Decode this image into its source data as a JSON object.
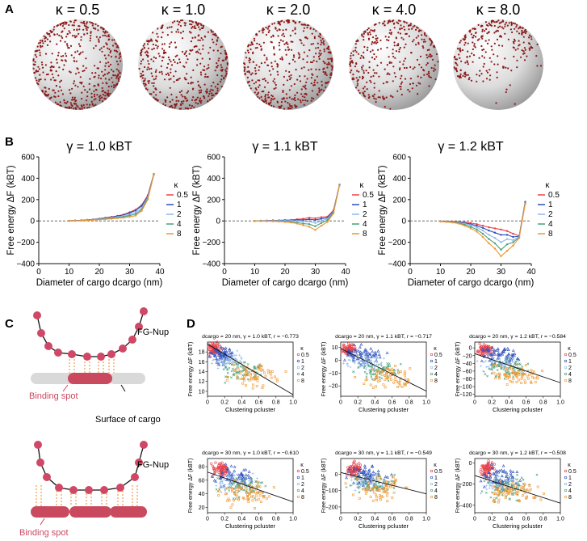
{
  "colors": {
    "sphere_dot": "#8b1a1a",
    "k0.5": "#e8424b",
    "k1": "#2b4fbf",
    "k2": "#8fb7e8",
    "k4": "#45a07a",
    "k8": "#f0962e",
    "node": "#d04866",
    "surface": "#d9d9d9",
    "bar": "#c94a5e",
    "spring": "#f0b070"
  },
  "panel_labels": {
    "A": "A",
    "B": "B",
    "C": "C",
    "D": "D"
  },
  "panelA": {
    "spheres": [
      {
        "label": "κ = 0.5",
        "kappa": 0.5,
        "coverage": 1.0
      },
      {
        "label": "κ = 1.0",
        "kappa": 1.0,
        "coverage": 0.95
      },
      {
        "label": "κ = 2.0",
        "kappa": 2.0,
        "coverage": 0.85
      },
      {
        "label": "κ = 4.0",
        "kappa": 4.0,
        "coverage": 0.6
      },
      {
        "label": "κ = 8.0",
        "kappa": 8.0,
        "coverage": 0.35
      }
    ]
  },
  "chart_data": [
    {
      "type": "line",
      "panel": "B1",
      "title": "γ = 1.0 kBT",
      "xlabel": "Diameter of cargo dcargo (nm)",
      "ylabel": "Free energy ΔF (kBT)",
      "xlim": [
        0,
        40
      ],
      "ylim": [
        -400,
        600
      ],
      "xticks": [
        "0",
        "10",
        "20",
        "30",
        "40"
      ],
      "yticks": [
        "600",
        "400",
        "200",
        "0",
        "−200",
        "−400"
      ],
      "x": [
        10,
        12,
        14,
        16,
        18,
        20,
        22,
        24,
        26,
        28,
        30,
        32,
        34,
        36,
        38
      ],
      "legend_title": "κ",
      "series": [
        {
          "name": "0.5",
          "values": [
            2,
            4,
            6,
            10,
            15,
            22,
            30,
            38,
            48,
            60,
            82,
            105,
            150,
            240,
            440
          ]
        },
        {
          "name": "1",
          "values": [
            1,
            3,
            5,
            9,
            14,
            20,
            28,
            35,
            45,
            55,
            75,
            98,
            140,
            230,
            438
          ]
        },
        {
          "name": "2",
          "values": [
            1,
            2,
            4,
            7,
            12,
            18,
            24,
            30,
            38,
            46,
            60,
            80,
            120,
            220,
            436
          ]
        },
        {
          "name": "4",
          "values": [
            0,
            2,
            3,
            6,
            10,
            15,
            20,
            25,
            32,
            38,
            50,
            65,
            105,
            210,
            434
          ]
        },
        {
          "name": "8",
          "values": [
            0,
            1,
            2,
            5,
            8,
            12,
            16,
            20,
            26,
            30,
            38,
            50,
            95,
            200,
            432
          ]
        }
      ]
    },
    {
      "type": "line",
      "panel": "B2",
      "title": "γ = 1.1 kBT",
      "xlabel": "Diameter of cargo dcargo (nm)",
      "ylabel": "Free energy ΔF (kBT)",
      "xlim": [
        0,
        40
      ],
      "ylim": [
        -400,
        600
      ],
      "xticks": [
        "0",
        "10",
        "20",
        "30",
        "40"
      ],
      "yticks": [
        "600",
        "400",
        "200",
        "0",
        "−200",
        "−400"
      ],
      "x": [
        10,
        12,
        14,
        16,
        18,
        20,
        22,
        24,
        26,
        28,
        30,
        32,
        34,
        36,
        38
      ],
      "legend_title": "κ",
      "series": [
        {
          "name": "0.5",
          "values": [
            0,
            2,
            3,
            5,
            6,
            8,
            10,
            15,
            20,
            30,
            25,
            35,
            40,
            100,
            340
          ]
        },
        {
          "name": "1",
          "values": [
            0,
            1,
            2,
            3,
            4,
            5,
            6,
            8,
            10,
            15,
            10,
            20,
            30,
            90,
            338
          ]
        },
        {
          "name": "2",
          "values": [
            0,
            0,
            0,
            1,
            2,
            2,
            2,
            0,
            -5,
            -5,
            -20,
            0,
            20,
            85,
            336
          ]
        },
        {
          "name": "4",
          "values": [
            0,
            -1,
            -2,
            -2,
            -3,
            -5,
            -8,
            -15,
            -25,
            -30,
            -50,
            -20,
            5,
            80,
            334
          ]
        },
        {
          "name": "8",
          "values": [
            0,
            -2,
            -3,
            -4,
            -6,
            -10,
            -15,
            -25,
            -40,
            -55,
            -85,
            -45,
            -10,
            70,
            332
          ]
        }
      ]
    },
    {
      "type": "line",
      "panel": "B3",
      "title": "γ = 1.2 kBT",
      "xlabel": "Diameter of cargo dcargo (nm)",
      "ylabel": "Free energy ΔF (kBT)",
      "xlim": [
        0,
        40
      ],
      "ylim": [
        -400,
        600
      ],
      "xticks": [
        "0",
        "10",
        "20",
        "30",
        "40"
      ],
      "yticks": [
        "600",
        "400",
        "200",
        "0",
        "−200",
        "−400"
      ],
      "x": [
        10,
        12,
        14,
        16,
        18,
        20,
        22,
        24,
        26,
        28,
        30,
        32,
        34,
        36,
        38
      ],
      "legend_title": "κ",
      "series": [
        {
          "name": "0.5",
          "values": [
            -2,
            -3,
            -5,
            -8,
            -12,
            -20,
            -30,
            -45,
            -60,
            -70,
            -80,
            -95,
            -120,
            -140,
            180
          ]
        },
        {
          "name": "1",
          "values": [
            -3,
            -5,
            -8,
            -12,
            -18,
            -30,
            -45,
            -65,
            -90,
            -110,
            -130,
            -130,
            -150,
            -145,
            175
          ]
        },
        {
          "name": "2",
          "values": [
            -4,
            -6,
            -10,
            -15,
            -25,
            -40,
            -60,
            -90,
            -130,
            -160,
            -200,
            -170,
            -180,
            -150,
            170
          ]
        },
        {
          "name": "4",
          "values": [
            -5,
            -8,
            -12,
            -20,
            -35,
            -55,
            -80,
            -120,
            -170,
            -210,
            -270,
            -220,
            -200,
            -155,
            165
          ]
        },
        {
          "name": "8",
          "values": [
            -6,
            -10,
            -15,
            -25,
            -45,
            -70,
            -100,
            -150,
            -210,
            -260,
            -330,
            -280,
            -230,
            -160,
            160
          ]
        }
      ]
    },
    {
      "type": "scatter",
      "panel": "D1",
      "title": "dcargo = 20 nm, γ = 1.0 kBT, r = −0.773",
      "xlabel": "Clustering pcluster",
      "ylabel": "Free energy ΔF (kBT)",
      "xlim": [
        0,
        1
      ],
      "ylim": [
        9,
        20
      ],
      "xticks": [
        "0",
        "0.2",
        "0.4",
        "0.6",
        "0.8",
        "1.0"
      ],
      "yticks": [
        "18",
        "16",
        "14",
        "12",
        "10"
      ],
      "ytick_values": [
        18,
        16,
        14,
        12,
        10
      ],
      "fit": {
        "x0": 0.0,
        "y0": 19.6,
        "x1": 1.0,
        "y1": 9.3
      },
      "legend_title": "κ",
      "legend": [
        "0.5",
        "1",
        "2",
        "4",
        "8"
      ],
      "clouds": [
        {
          "name": "0.5",
          "cx": 0.08,
          "sx": 0.06,
          "cy": 18.6,
          "sy": 0.9
        },
        {
          "name": "1",
          "cx": 0.15,
          "sx": 0.09,
          "cy": 17.5,
          "sy": 1.2
        },
        {
          "name": "2",
          "cx": 0.25,
          "sx": 0.12,
          "cy": 16.0,
          "sy": 1.4
        },
        {
          "name": "4",
          "cx": 0.4,
          "sx": 0.15,
          "cy": 14.5,
          "sy": 1.5
        },
        {
          "name": "8",
          "cx": 0.55,
          "sx": 0.18,
          "cy": 13.0,
          "sy": 1.6
        }
      ]
    },
    {
      "type": "scatter",
      "panel": "D2",
      "title": "dcargo = 20 nm, γ = 1.1 kBT, r = −0.717",
      "xlabel": "Clustering pcluster",
      "ylabel": "Free energy ΔF (kBT)",
      "xlim": [
        0,
        1
      ],
      "ylim": [
        -28,
        14
      ],
      "xticks": [
        "0",
        "0.2",
        "0.4",
        "0.6",
        "0.8",
        "1.0"
      ],
      "yticks": [
        "10",
        "0",
        "−10",
        "−20"
      ],
      "ytick_values": [
        10,
        0,
        -10,
        -20
      ],
      "fit": {
        "x0": 0.0,
        "y0": 9.0,
        "x1": 1.0,
        "y1": -24.0
      },
      "legend_title": "κ",
      "legend": [
        "0.5",
        "1",
        "2",
        "4",
        "8"
      ],
      "clouds": [
        {
          "name": "0.5",
          "cx": 0.1,
          "sx": 0.06,
          "cy": 8.0,
          "sy": 3.0
        },
        {
          "name": "1",
          "cx": 0.25,
          "sx": 0.15,
          "cy": 4.0,
          "sy": 4.5
        },
        {
          "name": "2",
          "cx": 0.3,
          "sx": 0.15,
          "cy": -2.0,
          "sy": 5.0
        },
        {
          "name": "4",
          "cx": 0.45,
          "sx": 0.18,
          "cy": -8.0,
          "sy": 5.0
        },
        {
          "name": "8",
          "cx": 0.55,
          "sx": 0.2,
          "cy": -13.0,
          "sy": 5.5
        }
      ]
    },
    {
      "type": "scatter",
      "panel": "D3",
      "title": "dcargo = 20 nm, γ = 1.2 kBT, r = −0.584",
      "xlabel": "Clustering pcluster",
      "ylabel": "Free energy ΔF (kBT)",
      "xlim": [
        0,
        1
      ],
      "ylim": [
        -125,
        15
      ],
      "xticks": [
        "0",
        "0.2",
        "0.4",
        "0.6",
        "0.8",
        "1.0"
      ],
      "yticks": [
        "0",
        "−20",
        "−40",
        "−60",
        "−80",
        "−100",
        "−120"
      ],
      "ytick_values": [
        0,
        -20,
        -40,
        -60,
        -80,
        -100,
        -120
      ],
      "fit": {
        "x0": 0.0,
        "y0": -15.0,
        "x1": 1.0,
        "y1": -90.0
      },
      "legend_title": "κ",
      "legend": [
        "0.5",
        "1",
        "2",
        "4",
        "8"
      ],
      "clouds": [
        {
          "name": "0.5",
          "cx": 0.12,
          "sx": 0.06,
          "cy": -5.0,
          "sy": 10.0
        },
        {
          "name": "1",
          "cx": 0.3,
          "sx": 0.15,
          "cy": -20.0,
          "sy": 14.0
        },
        {
          "name": "2",
          "cx": 0.3,
          "sx": 0.15,
          "cy": -40.0,
          "sy": 15.0
        },
        {
          "name": "4",
          "cx": 0.4,
          "sx": 0.18,
          "cy": -55.0,
          "sy": 16.0
        },
        {
          "name": "8",
          "cx": 0.5,
          "sx": 0.2,
          "cy": -70.0,
          "sy": 18.0
        }
      ]
    },
    {
      "type": "scatter",
      "panel": "D4",
      "title": "dcargo = 30 nm, γ = 1.0 kBT, r = −0.610",
      "xlabel": "Clustering pcluster",
      "ylabel": "Free energy ΔF (kBT)",
      "xlim": [
        0,
        1
      ],
      "ylim": [
        12,
        92
      ],
      "xticks": [
        "0",
        "0.2",
        "0.4",
        "0.6",
        "0.8",
        "1.0"
      ],
      "yticks": [
        "80",
        "60",
        "40",
        "20"
      ],
      "ytick_values": [
        80,
        60,
        40,
        20
      ],
      "fit": {
        "x0": 0.0,
        "y0": 72.0,
        "x1": 1.0,
        "y1": 28.0
      },
      "legend_title": "κ",
      "legend": [
        "0.5",
        "1",
        "2",
        "4",
        "8"
      ],
      "clouds": [
        {
          "name": "0.5",
          "cx": 0.15,
          "sx": 0.06,
          "cy": 75.0,
          "sy": 8.0
        },
        {
          "name": "1",
          "cx": 0.3,
          "sx": 0.15,
          "cy": 65.0,
          "sy": 10.0
        },
        {
          "name": "2",
          "cx": 0.3,
          "sx": 0.15,
          "cy": 55.0,
          "sy": 10.0
        },
        {
          "name": "4",
          "cx": 0.4,
          "sx": 0.18,
          "cy": 48.0,
          "sy": 11.0
        },
        {
          "name": "8",
          "cx": 0.45,
          "sx": 0.2,
          "cy": 40.0,
          "sy": 12.0
        }
      ]
    },
    {
      "type": "scatter",
      "panel": "D5",
      "title": "dcargo = 30 nm, γ = 1.1 kBT, r = −0.549",
      "xlabel": "Clustering pcluster",
      "ylabel": "Free energy ΔF (kBT)",
      "xlim": [
        0,
        1
      ],
      "ylim": [
        -235,
        95
      ],
      "xticks": [
        "0",
        "0.2",
        "0.4",
        "0.6",
        "0.8",
        "1.0"
      ],
      "yticks": [
        "0",
        "−100",
        "−200"
      ],
      "ytick_values": [
        0,
        -100,
        -200
      ],
      "fit": {
        "x0": 0.0,
        "y0": 10.0,
        "x1": 1.0,
        "y1": -120.0
      },
      "legend_title": "κ",
      "legend": [
        "0.5",
        "1",
        "2",
        "4",
        "8"
      ],
      "clouds": [
        {
          "name": "0.5",
          "cx": 0.15,
          "sx": 0.06,
          "cy": 30.0,
          "sy": 30.0
        },
        {
          "name": "1",
          "cx": 0.3,
          "sx": 0.15,
          "cy": -10.0,
          "sy": 40.0
        },
        {
          "name": "2",
          "cx": 0.3,
          "sx": 0.15,
          "cy": -40.0,
          "sy": 40.0
        },
        {
          "name": "4",
          "cx": 0.4,
          "sx": 0.18,
          "cy": -60.0,
          "sy": 45.0
        },
        {
          "name": "8",
          "cx": 0.45,
          "sx": 0.2,
          "cy": -80.0,
          "sy": 50.0
        }
      ]
    },
    {
      "type": "scatter",
      "panel": "D6",
      "title": "dcargo = 30 nm, γ = 1.2 kBT, r = −0.508",
      "xlabel": "Clustering pcluster",
      "ylabel": "Free energy ΔF (kBT)",
      "xlim": [
        0,
        1
      ],
      "ylim": [
        -470,
        40
      ],
      "xticks": [
        "0",
        "0.2",
        "0.4",
        "0.6",
        "0.8",
        "1.0"
      ],
      "yticks": [
        "0",
        "−200",
        "−400"
      ],
      "ytick_values": [
        0,
        -200,
        -400
      ],
      "fit": {
        "x0": 0.0,
        "y0": -120.0,
        "x1": 1.0,
        "y1": -380.0
      },
      "legend_title": "κ",
      "legend": [
        "0.5",
        "1",
        "2",
        "4",
        "8"
      ],
      "clouds": [
        {
          "name": "0.5",
          "cx": 0.15,
          "sx": 0.06,
          "cy": -60.0,
          "sy": 50.0
        },
        {
          "name": "1",
          "cx": 0.3,
          "sx": 0.15,
          "cy": -150.0,
          "sy": 70.0
        },
        {
          "name": "2",
          "cx": 0.3,
          "sx": 0.15,
          "cy": -200.0,
          "sy": 70.0
        },
        {
          "name": "4",
          "cx": 0.4,
          "sx": 0.18,
          "cy": -240.0,
          "sy": 75.0
        },
        {
          "name": "8",
          "cx": 0.45,
          "sx": 0.2,
          "cy": -280.0,
          "sy": 80.0
        }
      ]
    }
  ],
  "panelC": {
    "top": {
      "fg_label": "FG-Nup",
      "binding_label": "Binding spot",
      "surface_label": "Surface of cargo"
    },
    "bottom": {
      "fg_label": "FG-Nup",
      "binding_label": "Binding spot"
    }
  }
}
